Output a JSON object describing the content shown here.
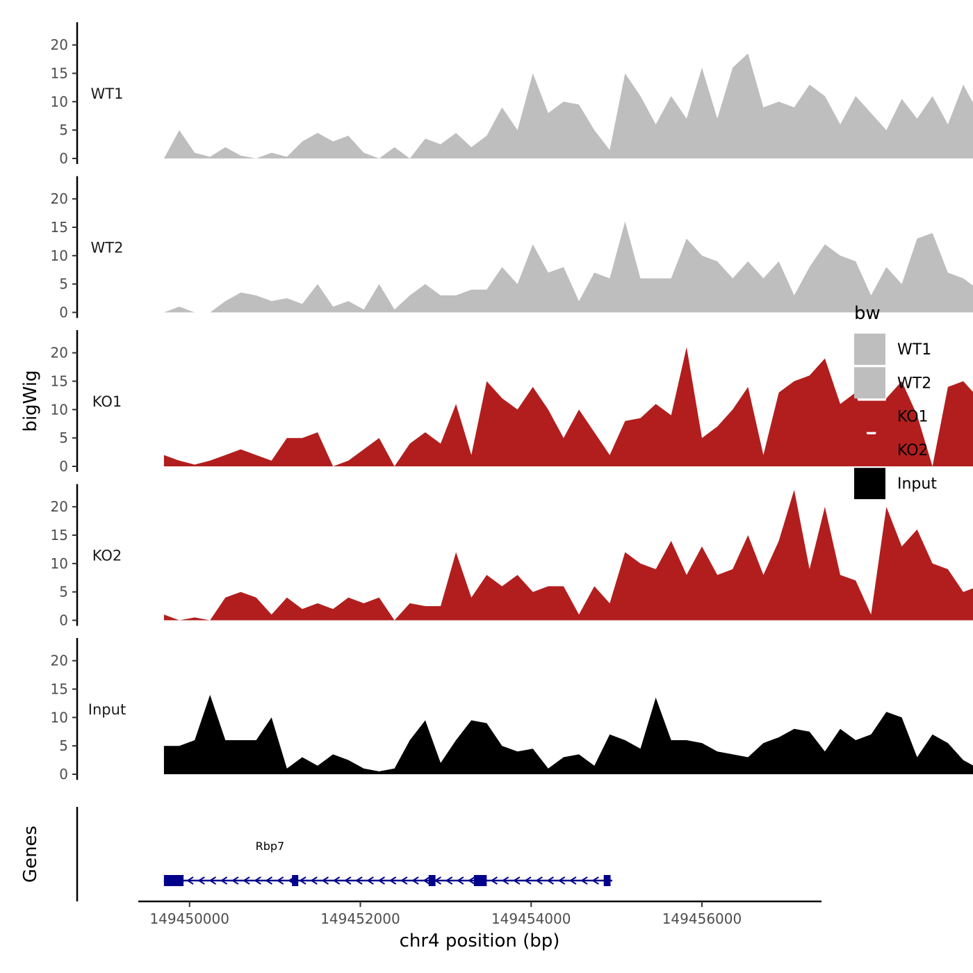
{
  "chart_data": {
    "type": "area",
    "chromosome": "chr4",
    "xlabel": "chr4 position (bp)",
    "ylabel": "bigWig",
    "genes_label": "Genes",
    "xlim": [
      149449400,
      149457400
    ],
    "ylim": [
      0,
      24
    ],
    "x_ticks": [
      149450000,
      149452000,
      149454000,
      149456000
    ],
    "x_tick_labels": [
      "149450000",
      "149452000",
      "149454000",
      "149456000"
    ],
    "y_ticks": [
      0,
      5,
      10,
      15,
      20
    ],
    "y_tick_labels": [
      "0",
      "5",
      "10",
      "15",
      "20"
    ],
    "legend": {
      "title": "bw",
      "entries": [
        {
          "label": "WT1",
          "color": "#bebebe"
        },
        {
          "label": "WT2",
          "color": "#bebebe"
        },
        {
          "label": "KO1",
          "color": "#b21e1e"
        },
        {
          "label": "KO2",
          "color": "#b21e1e"
        },
        {
          "label": "Input",
          "color": "#000000"
        }
      ]
    },
    "x_start": 149449700,
    "x_step": 180,
    "series": [
      {
        "name": "WT1",
        "color": "#bebebe",
        "values": [
          0.0,
          5.0,
          1.0,
          0.3,
          2.0,
          0.5,
          0.0,
          1.0,
          0.3,
          3.0,
          4.5,
          3.0,
          4.0,
          1.0,
          0.0,
          2.0,
          0.0,
          3.5,
          2.5,
          4.5,
          2.0,
          4.0,
          9.0,
          5.0,
          15.0,
          8.0,
          10.0,
          9.5,
          5.0,
          1.5,
          15.0,
          11.0,
          6.0,
          11.0,
          7.0,
          16.0,
          7.0,
          16.0,
          18.5,
          9.0,
          10.0,
          9.0,
          13.0,
          11.0,
          6.0,
          11.0,
          8.0,
          5.0,
          10.5,
          7.0,
          11.0,
          6.0,
          13.0,
          8.0,
          7.0,
          13.0,
          3.0,
          3.0,
          1.0,
          11.0,
          15.0,
          7.0,
          6.0,
          2.0,
          8.0,
          7.0,
          5.0,
          3.0,
          5.0,
          10.0,
          2.0,
          11.0,
          13.0,
          8.0,
          5.0,
          1.0,
          5.0
        ]
      },
      {
        "name": "WT2",
        "color": "#bebebe",
        "values": [
          0.0,
          1.0,
          0.0,
          0.0,
          2.0,
          3.5,
          3.0,
          2.0,
          2.5,
          1.5,
          5.0,
          1.0,
          2.0,
          0.5,
          5.0,
          0.5,
          3.0,
          5.0,
          3.0,
          3.0,
          4.0,
          4.0,
          8.0,
          5.0,
          12.0,
          7.0,
          8.0,
          2.0,
          7.0,
          6.0,
          16.0,
          6.0,
          6.0,
          6.0,
          13.0,
          10.0,
          9.0,
          6.0,
          9.0,
          6.0,
          9.0,
          3.0,
          8.0,
          12.0,
          10.0,
          9.0,
          3.0,
          8.0,
          5.0,
          13.0,
          14.0,
          7.0,
          6.0,
          4.0,
          4.0,
          3.0,
          8.0,
          7.0,
          5.0,
          3.0,
          5.0,
          8.0,
          3.0,
          8.0,
          5.0,
          1.0,
          3.0,
          4.0,
          7.0,
          1.0,
          3.0,
          5.0,
          1.0,
          4.0,
          1.0,
          5.0,
          6.0
        ]
      },
      {
        "name": "KO1",
        "color": "#b21e1e",
        "values": [
          2.0,
          1.0,
          0.3,
          1.0,
          2.0,
          3.0,
          2.0,
          1.0,
          5.0,
          5.0,
          6.0,
          0.0,
          1.0,
          3.0,
          5.0,
          0.0,
          4.0,
          6.0,
          4.0,
          11.0,
          2.0,
          15.0,
          12.0,
          10.0,
          14.0,
          10.0,
          5.0,
          10.0,
          6.0,
          2.0,
          8.0,
          8.5,
          11.0,
          9.0,
          21.0,
          5.0,
          7.0,
          10.0,
          14.0,
          2.0,
          13.0,
          15.0,
          16.0,
          19.0,
          11.0,
          13.0,
          3.0,
          12.0,
          15.0,
          9.0,
          0.0,
          14.0,
          15.0,
          12.0,
          9.0,
          3.0,
          2.0,
          3.0,
          11.0,
          6.0,
          12.0,
          5.0,
          3.0,
          7.0,
          3.0,
          4.0,
          4.0,
          7.0,
          4.0,
          2.0,
          2.0,
          7.0,
          5.0,
          2.0,
          7.0,
          5.0,
          8.0
        ]
      },
      {
        "name": "KO2",
        "color": "#b21e1e",
        "values": [
          1.0,
          0.0,
          0.5,
          0.0,
          4.0,
          5.0,
          4.0,
          1.0,
          4.0,
          2.0,
          3.0,
          2.0,
          4.0,
          3.0,
          4.0,
          0.0,
          3.0,
          2.5,
          2.5,
          12.0,
          4.0,
          8.0,
          6.0,
          8.0,
          5.0,
          6.0,
          6.0,
          1.0,
          6.0,
          3.0,
          12.0,
          10.0,
          9.0,
          14.0,
          8.0,
          13.0,
          8.0,
          9.0,
          15.0,
          8.0,
          14.0,
          23.0,
          9.0,
          20.0,
          8.0,
          7.0,
          1.0,
          20.0,
          13.0,
          16.0,
          10.0,
          9.0,
          5.0,
          6.0,
          8.0,
          5.0,
          9.0,
          7.0,
          9.0,
          13.0,
          4.0,
          2.0,
          2.5,
          2.0,
          5.0,
          3.0,
          5.5,
          2.0,
          5.0,
          3.0,
          4.0,
          9.0,
          5.0,
          7.0,
          11.0,
          5.0,
          11.0
        ]
      },
      {
        "name": "Input",
        "color": "#000000",
        "values": [
          5.0,
          5.0,
          6.0,
          14.0,
          6.0,
          6.0,
          6.0,
          10.0,
          1.0,
          3.0,
          1.5,
          3.5,
          2.5,
          1.0,
          0.5,
          1.0,
          6.0,
          9.5,
          2.0,
          6.0,
          9.5,
          9.0,
          5.0,
          4.0,
          4.5,
          1.0,
          3.0,
          3.5,
          1.5,
          7.0,
          6.0,
          4.5,
          13.5,
          6.0,
          6.0,
          5.5,
          4.0,
          3.5,
          3.0,
          5.5,
          6.5,
          8.0,
          7.5,
          4.0,
          8.0,
          6.0,
          7.0,
          11.0,
          10.0,
          3.0,
          7.0,
          5.5,
          2.5,
          1.0,
          5.0,
          13.0,
          14.0,
          6.0,
          4.0,
          10.0,
          3.0,
          2.0,
          4.0,
          2.5,
          6.0,
          2.5,
          7.0,
          2.5,
          6.0,
          5.5,
          7.0,
          6.0,
          7.5,
          0.5,
          5.0,
          5.5,
          7.0
        ]
      }
    ],
    "genes": [
      {
        "name": "Rbp7",
        "start": 149449700,
        "end": 149454950,
        "strand": "-",
        "exons": [
          [
            149449700,
            149449930
          ],
          [
            149451200,
            149451270
          ],
          [
            149452800,
            149452880
          ],
          [
            149453330,
            149453480
          ],
          [
            149454850,
            149454930
          ]
        ]
      }
    ]
  }
}
